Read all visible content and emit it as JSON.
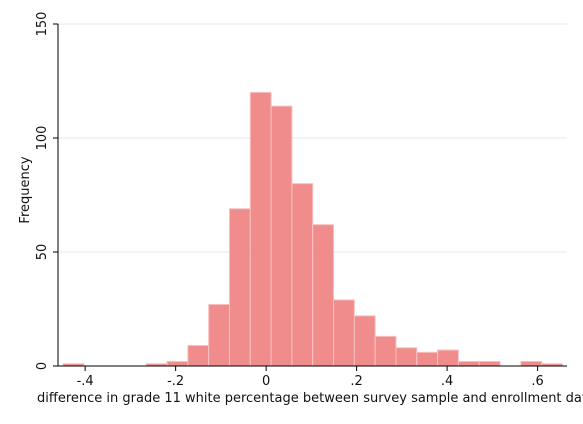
{
  "chart_data": {
    "type": "bar",
    "xlabel": "difference in grade 11 white percentage between survey sample and enrollment dat",
    "ylabel": "Frequency",
    "xlim": [
      -0.46,
      0.665
    ],
    "ylim": [
      0,
      150
    ],
    "x_ticks": [
      -0.4,
      -0.2,
      0,
      0.2,
      0.4,
      0.6
    ],
    "x_tick_labels": [
      "-.4",
      "-.2",
      "0",
      ".2",
      ".4",
      ".6"
    ],
    "y_ticks": [
      0,
      50,
      100,
      150
    ],
    "y_tick_labels": [
      "0",
      "50",
      "100",
      "150"
    ],
    "grid": true,
    "bar_color": "#f08080",
    "bin_width": 0.046,
    "bins": [
      {
        "x0": -0.449,
        "x1": -0.403,
        "value": 1
      },
      {
        "x0": -0.265,
        "x1": -0.219,
        "value": 1
      },
      {
        "x0": -0.219,
        "x1": -0.173,
        "value": 2
      },
      {
        "x0": -0.173,
        "x1": -0.127,
        "value": 9
      },
      {
        "x0": -0.127,
        "x1": -0.081,
        "value": 27
      },
      {
        "x0": -0.081,
        "x1": -0.035,
        "value": 69
      },
      {
        "x0": -0.035,
        "x1": 0.011,
        "value": 120
      },
      {
        "x0": 0.011,
        "x1": 0.057,
        "value": 114
      },
      {
        "x0": 0.057,
        "x1": 0.103,
        "value": 80
      },
      {
        "x0": 0.103,
        "x1": 0.149,
        "value": 62
      },
      {
        "x0": 0.149,
        "x1": 0.195,
        "value": 29
      },
      {
        "x0": 0.195,
        "x1": 0.241,
        "value": 22
      },
      {
        "x0": 0.241,
        "x1": 0.287,
        "value": 13
      },
      {
        "x0": 0.287,
        "x1": 0.333,
        "value": 8
      },
      {
        "x0": 0.333,
        "x1": 0.379,
        "value": 6
      },
      {
        "x0": 0.379,
        "x1": 0.425,
        "value": 7
      },
      {
        "x0": 0.425,
        "x1": 0.471,
        "value": 2
      },
      {
        "x0": 0.471,
        "x1": 0.517,
        "value": 2
      },
      {
        "x0": 0.563,
        "x1": 0.609,
        "value": 2
      },
      {
        "x0": 0.609,
        "x1": 0.655,
        "value": 1
      }
    ]
  }
}
